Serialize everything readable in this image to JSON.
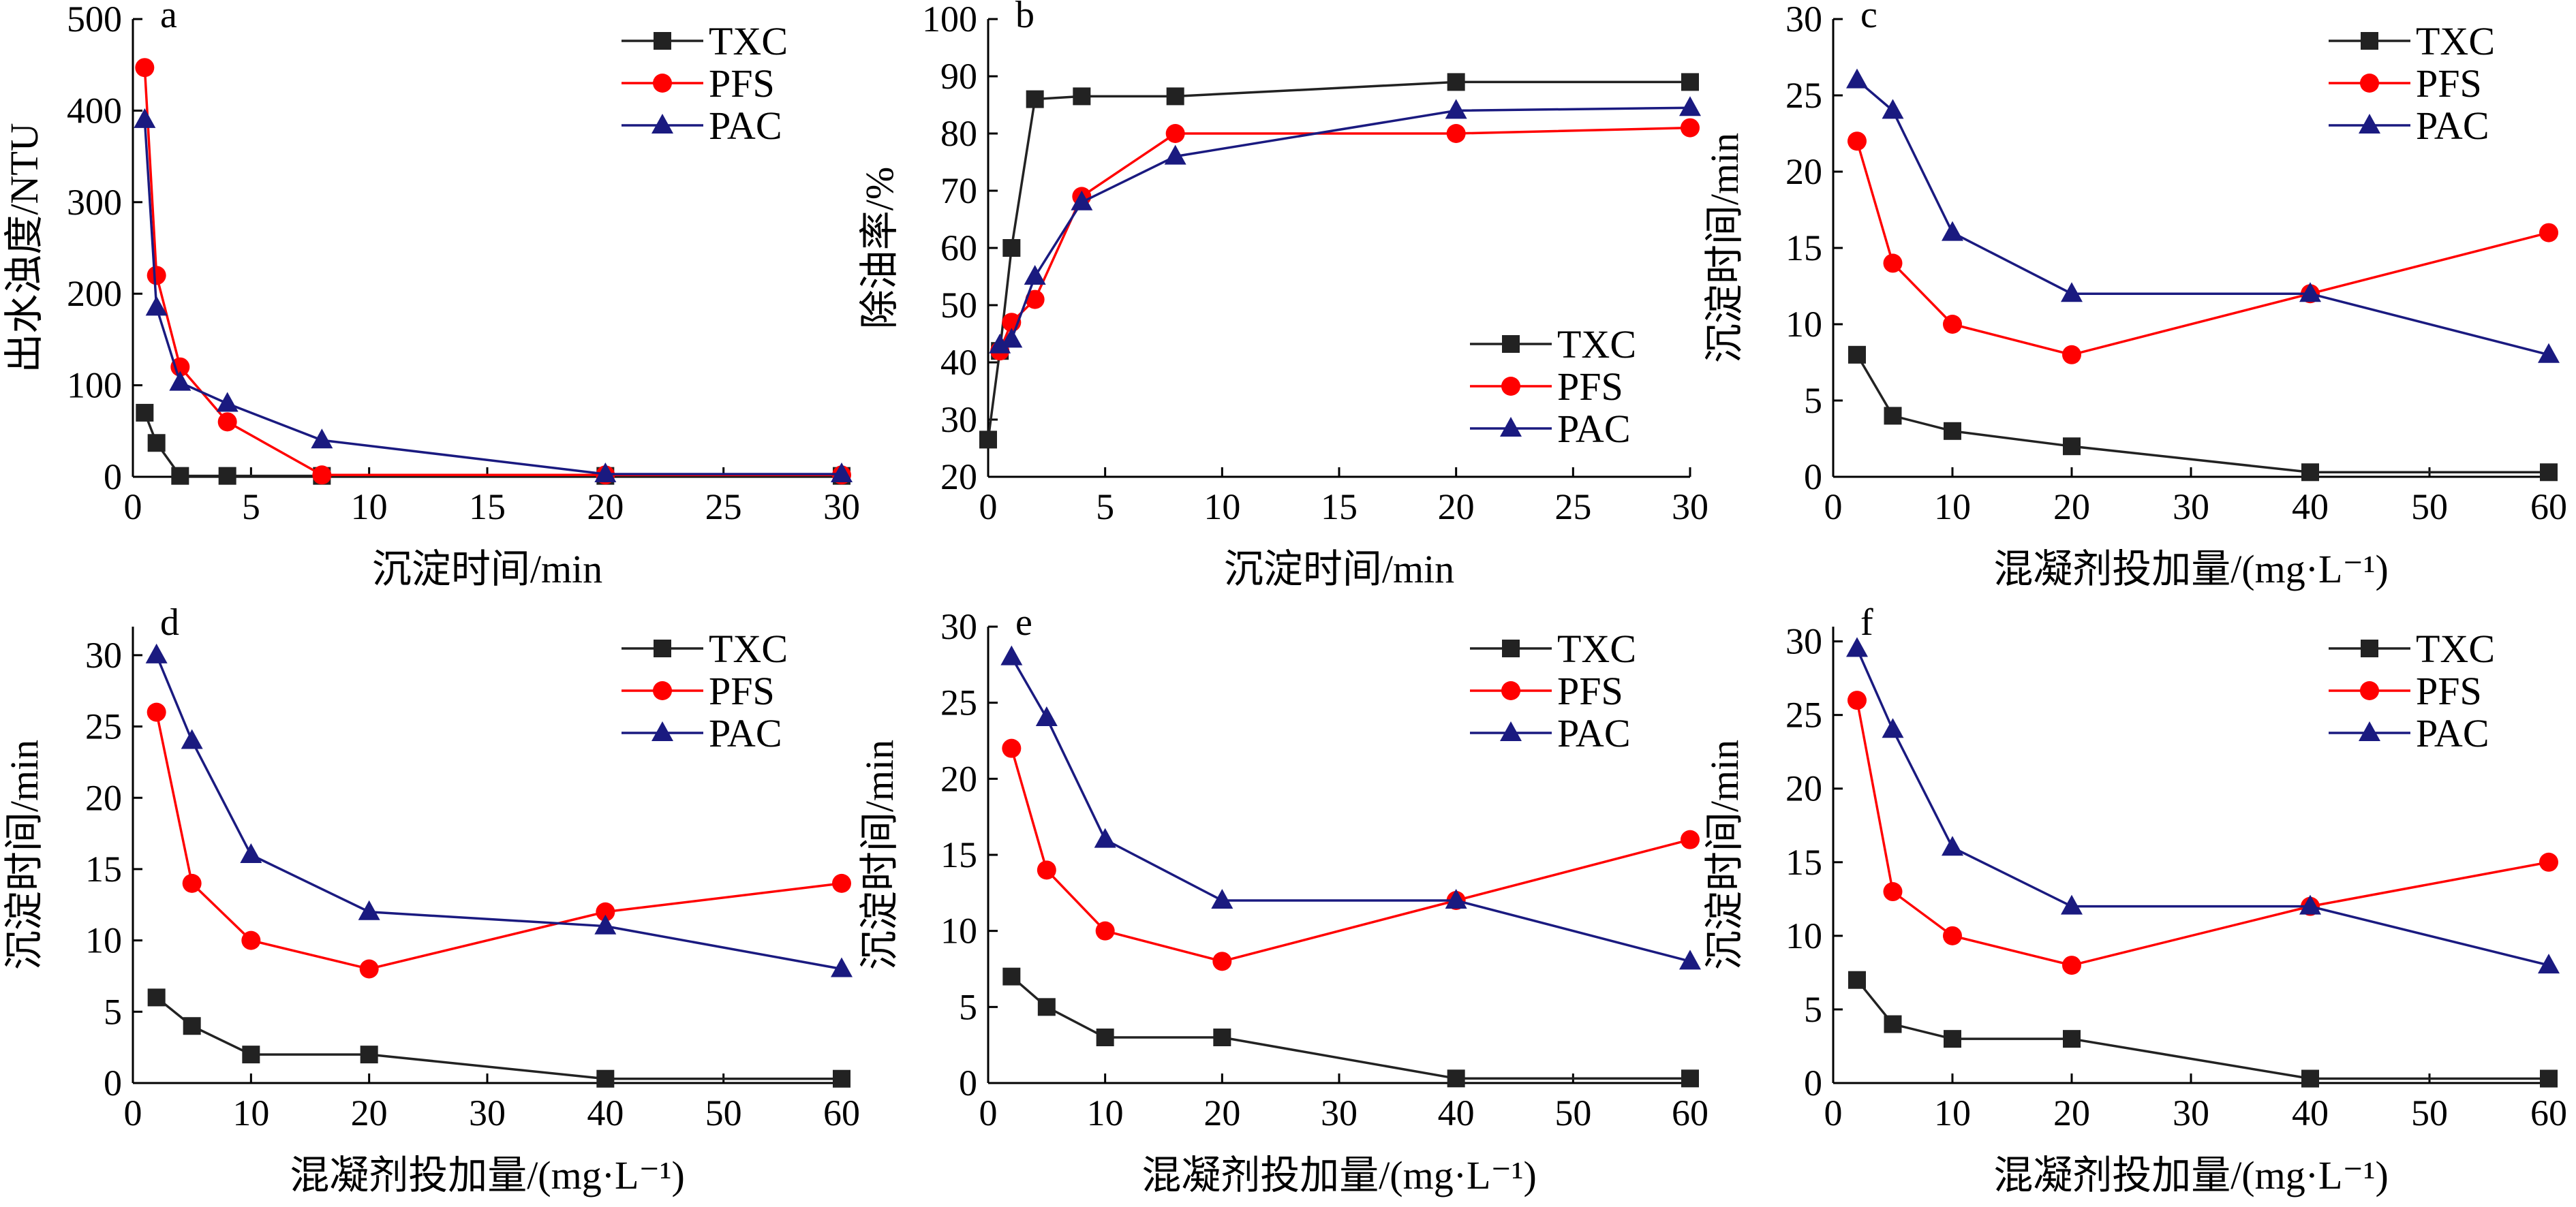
{
  "chart_data": [
    {
      "type": "line",
      "panel_label": "a",
      "xlabel": "沉淀时间/min",
      "ylabel": "出水浊度/NTU",
      "xlim": [
        0,
        30
      ],
      "ylim": [
        0,
        500
      ],
      "xticks": [
        0,
        5,
        10,
        15,
        20,
        25,
        30
      ],
      "yticks": [
        0,
        100,
        200,
        300,
        400,
        500
      ],
      "legend_position": "top-right",
      "series": [
        {
          "name": "TXC",
          "color": "#222222",
          "marker": "square",
          "x": [
            0.5,
            1,
            2,
            4,
            8,
            20,
            30
          ],
          "y": [
            70,
            37,
            1,
            1,
            1,
            1,
            1
          ]
        },
        {
          "name": "PFS",
          "color": "#ff0000",
          "marker": "circle",
          "x": [
            0.5,
            1,
            2,
            4,
            8,
            20,
            30
          ],
          "y": [
            447,
            220,
            120,
            60,
            2,
            2,
            2
          ]
        },
        {
          "name": "PAC",
          "color": "#1a1a80",
          "marker": "triangle",
          "x": [
            0.5,
            1,
            2,
            4,
            8,
            20,
            30
          ],
          "y": [
            390,
            185,
            103,
            80,
            40,
            3,
            3
          ]
        }
      ]
    },
    {
      "type": "line",
      "panel_label": "b",
      "xlabel": "沉淀时间/min",
      "ylabel": "除油率/%",
      "xlim": [
        0,
        30
      ],
      "ylim": [
        20,
        100
      ],
      "xticks": [
        0,
        5,
        10,
        15,
        20,
        25,
        30
      ],
      "yticks": [
        20,
        30,
        40,
        50,
        60,
        70,
        80,
        90,
        100
      ],
      "legend_position": "bottom-right",
      "series": [
        {
          "name": "TXC",
          "color": "#222222",
          "marker": "square",
          "x": [
            0,
            0.5,
            1,
            2,
            4,
            8,
            20,
            30
          ],
          "y": [
            26.5,
            42,
            60,
            86,
            86.5,
            86.5,
            89,
            89
          ]
        },
        {
          "name": "PFS",
          "color": "#ff0000",
          "marker": "circle",
          "x": [
            0.5,
            1,
            2,
            4,
            8,
            20,
            30
          ],
          "y": [
            42,
            47,
            51,
            69,
            80,
            80,
            81
          ]
        },
        {
          "name": "PAC",
          "color": "#1a1a80",
          "marker": "triangle",
          "x": [
            0.5,
            1,
            2,
            4,
            8,
            20,
            30
          ],
          "y": [
            43,
            44,
            55,
            68,
            76,
            84,
            84.5
          ]
        }
      ]
    },
    {
      "type": "line",
      "panel_label": "c",
      "xlabel": "混凝剂投加量/(mg·L⁻¹)",
      "ylabel": "沉淀时间/min",
      "xlim": [
        0,
        60
      ],
      "ylim": [
        0,
        30
      ],
      "xticks": [
        0,
        10,
        20,
        30,
        40,
        50,
        60
      ],
      "yticks": [
        0,
        5,
        10,
        15,
        20,
        25,
        30
      ],
      "legend_position": "top-right",
      "series": [
        {
          "name": "TXC",
          "color": "#222222",
          "marker": "square",
          "x": [
            2,
            5,
            10,
            20,
            40,
            60
          ],
          "y": [
            8,
            4,
            3,
            2,
            0.3,
            0.3
          ]
        },
        {
          "name": "PFS",
          "color": "#ff0000",
          "marker": "circle",
          "x": [
            2,
            5,
            10,
            20,
            40,
            60
          ],
          "y": [
            22,
            14,
            10,
            8,
            12,
            16
          ]
        },
        {
          "name": "PAC",
          "color": "#1a1a80",
          "marker": "triangle",
          "x": [
            2,
            5,
            10,
            20,
            40,
            60
          ],
          "y": [
            26,
            24,
            16,
            12,
            12,
            8
          ]
        }
      ]
    },
    {
      "type": "line",
      "panel_label": "d",
      "xlabel": "混凝剂投加量/(mg·L⁻¹)",
      "ylabel": "沉淀时间/min",
      "xlim": [
        0,
        60
      ],
      "ylim": [
        0,
        32
      ],
      "xticks": [
        0,
        10,
        20,
        30,
        40,
        50,
        60
      ],
      "yticks": [
        0,
        5,
        10,
        15,
        20,
        25,
        30
      ],
      "legend_position": "top-right",
      "series": [
        {
          "name": "TXC",
          "color": "#222222",
          "marker": "square",
          "x": [
            2,
            5,
            10,
            20,
            40,
            60
          ],
          "y": [
            6,
            4,
            2,
            2,
            0.3,
            0.3
          ]
        },
        {
          "name": "PFS",
          "color": "#ff0000",
          "marker": "circle",
          "x": [
            2,
            5,
            10,
            20,
            40,
            60
          ],
          "y": [
            26,
            14,
            10,
            8,
            12,
            14
          ]
        },
        {
          "name": "PAC",
          "color": "#1a1a80",
          "marker": "triangle",
          "x": [
            2,
            5,
            10,
            20,
            40,
            60
          ],
          "y": [
            30,
            24,
            16,
            12,
            11,
            8
          ]
        }
      ]
    },
    {
      "type": "line",
      "panel_label": "e",
      "xlabel": "混凝剂投加量/(mg·L⁻¹)",
      "ylabel": "沉淀时间/min",
      "xlim": [
        0,
        60
      ],
      "ylim": [
        0,
        30
      ],
      "xticks": [
        0,
        10,
        20,
        30,
        40,
        50,
        60
      ],
      "yticks": [
        0,
        5,
        10,
        15,
        20,
        25,
        30
      ],
      "legend_position": "top-right",
      "series": [
        {
          "name": "TXC",
          "color": "#222222",
          "marker": "square",
          "x": [
            2,
            5,
            10,
            20,
            40,
            60
          ],
          "y": [
            7,
            5,
            3,
            3,
            0.3,
            0.3
          ]
        },
        {
          "name": "PFS",
          "color": "#ff0000",
          "marker": "circle",
          "x": [
            2,
            5,
            10,
            20,
            40,
            60
          ],
          "y": [
            22,
            14,
            10,
            8,
            12,
            16
          ]
        },
        {
          "name": "PAC",
          "color": "#1a1a80",
          "marker": "triangle",
          "x": [
            2,
            5,
            10,
            20,
            40,
            60
          ],
          "y": [
            28,
            24,
            16,
            12,
            12,
            8
          ]
        }
      ]
    },
    {
      "type": "line",
      "panel_label": "f",
      "xlabel": "混凝剂投加量/(mg·L⁻¹)",
      "ylabel": "沉淀时间/min",
      "xlim": [
        0,
        60
      ],
      "ylim": [
        0,
        31
      ],
      "xticks": [
        0,
        10,
        20,
        30,
        40,
        50,
        60
      ],
      "yticks": [
        0,
        5,
        10,
        15,
        20,
        25,
        30
      ],
      "legend_position": "top-right",
      "series": [
        {
          "name": "TXC",
          "color": "#222222",
          "marker": "square",
          "x": [
            2,
            5,
            10,
            20,
            40,
            60
          ],
          "y": [
            7,
            4,
            3,
            3,
            0.3,
            0.3
          ]
        },
        {
          "name": "PFS",
          "color": "#ff0000",
          "marker": "circle",
          "x": [
            2,
            5,
            10,
            20,
            40,
            60
          ],
          "y": [
            26,
            13,
            10,
            8,
            12,
            15
          ]
        },
        {
          "name": "PAC",
          "color": "#1a1a80",
          "marker": "triangle",
          "x": [
            2,
            5,
            10,
            20,
            40,
            60
          ],
          "y": [
            29.5,
            24,
            16,
            12,
            12,
            8
          ]
        }
      ]
    }
  ]
}
